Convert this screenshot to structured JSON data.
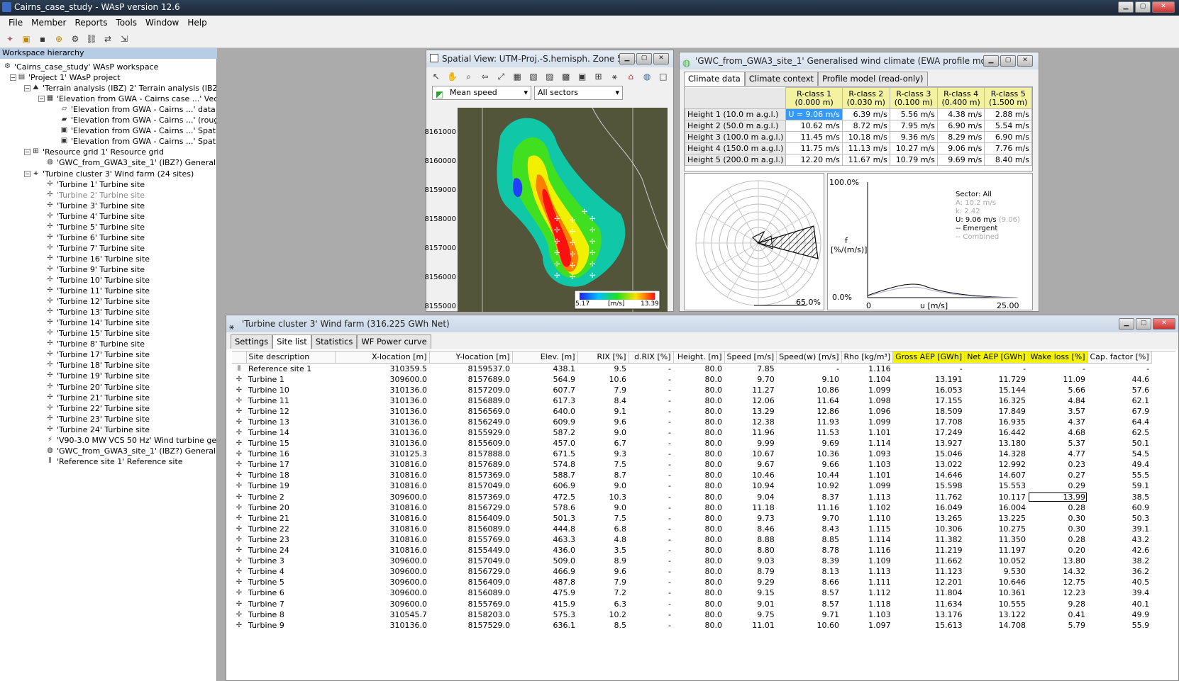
{
  "app": {
    "title": "Cairns_case_study - WAsP version 12.6",
    "menu": [
      "File",
      "Member",
      "Reports",
      "Tools",
      "Window",
      "Help"
    ]
  },
  "workspace": {
    "header": "Workspace hierarchy",
    "tree": [
      {
        "label": "'Cairns_case_study' WAsP workspace",
        "level": 0,
        "icon": "workspace-icon"
      },
      {
        "label": "'Project 1' WAsP project",
        "level": 1,
        "icon": "project-icon"
      },
      {
        "label": "'Terrain analysis (IBZ) 2' Terrain analysis (IBZ)",
        "level": 2,
        "icon": "terrain-icon"
      },
      {
        "label": "'Elevation from GWA - Cairns case ...' Vector map",
        "level": 3,
        "icon": "map-icon"
      },
      {
        "label": "'Elevation from GWA - Cairns ...' data layer",
        "level": 4,
        "icon": "layer-icon"
      },
      {
        "label": "'Elevation from GWA - Cairns ...' (roughness)",
        "level": 4,
        "icon": "roughness-icon"
      },
      {
        "label": "'Elevation from GWA - Cairns ...' Spatial image",
        "level": 4,
        "icon": "image-icon"
      },
      {
        "label": "'Elevation from GWA - Cairns ...' Spatial image",
        "level": 4,
        "icon": "image-icon"
      },
      {
        "label": "'Resource grid 1' Resource grid",
        "level": 2,
        "icon": "grid-icon"
      },
      {
        "label": "'GWC_from_GWA3_site_1' (IBZ?) Generalised wind",
        "level": 3,
        "icon": "climate-icon"
      },
      {
        "label": "'Turbine cluster 3' Wind farm (24 sites)",
        "level": 2,
        "icon": "windfarm-icon"
      },
      {
        "label": "'Turbine 1' Turbine site",
        "level": 3,
        "icon": "turbine-icon"
      },
      {
        "label": "'Turbine 2' Turbine site",
        "level": 3,
        "icon": "turbine-icon",
        "selected": true
      },
      {
        "label": "'Turbine 3' Turbine site",
        "level": 3,
        "icon": "turbine-icon"
      },
      {
        "label": "'Turbine 4' Turbine site",
        "level": 3,
        "icon": "turbine-icon"
      },
      {
        "label": "'Turbine 5' Turbine site",
        "level": 3,
        "icon": "turbine-icon"
      },
      {
        "label": "'Turbine 6' Turbine site",
        "level": 3,
        "icon": "turbine-icon"
      },
      {
        "label": "'Turbine 7' Turbine site",
        "level": 3,
        "icon": "turbine-icon"
      },
      {
        "label": "'Turbine 16' Turbine site",
        "level": 3,
        "icon": "turbine-icon"
      },
      {
        "label": "'Turbine 9' Turbine site",
        "level": 3,
        "icon": "turbine-icon"
      },
      {
        "label": "'Turbine 10' Turbine site",
        "level": 3,
        "icon": "turbine-icon"
      },
      {
        "label": "'Turbine 11' Turbine site",
        "level": 3,
        "icon": "turbine-icon"
      },
      {
        "label": "'Turbine 12' Turbine site",
        "level": 3,
        "icon": "turbine-icon"
      },
      {
        "label": "'Turbine 13' Turbine site",
        "level": 3,
        "icon": "turbine-icon"
      },
      {
        "label": "'Turbine 14' Turbine site",
        "level": 3,
        "icon": "turbine-icon"
      },
      {
        "label": "'Turbine 15' Turbine site",
        "level": 3,
        "icon": "turbine-icon"
      },
      {
        "label": "'Turbine 8' Turbine site",
        "level": 3,
        "icon": "turbine-icon"
      },
      {
        "label": "'Turbine 17' Turbine site",
        "level": 3,
        "icon": "turbine-icon"
      },
      {
        "label": "'Turbine 18' Turbine site",
        "level": 3,
        "icon": "turbine-icon"
      },
      {
        "label": "'Turbine 19' Turbine site",
        "level": 3,
        "icon": "turbine-icon"
      },
      {
        "label": "'Turbine 20' Turbine site",
        "level": 3,
        "icon": "turbine-icon"
      },
      {
        "label": "'Turbine 21' Turbine site",
        "level": 3,
        "icon": "turbine-icon"
      },
      {
        "label": "'Turbine 22' Turbine site",
        "level": 3,
        "icon": "turbine-icon"
      },
      {
        "label": "'Turbine 23' Turbine site",
        "level": 3,
        "icon": "turbine-icon"
      },
      {
        "label": "'Turbine 24' Turbine site",
        "level": 3,
        "icon": "turbine-icon"
      },
      {
        "label": "'V90-3.0 MW VCS 50 Hz' Wind turbine generator",
        "level": 3,
        "icon": "generator-icon"
      },
      {
        "label": "'GWC_from_GWA3_site_1' (IBZ?) Generalised wind",
        "level": 3,
        "icon": "climate-icon"
      },
      {
        "label": "'Reference site 1' Reference site",
        "level": 3,
        "icon": "reference-site-icon"
      }
    ]
  },
  "spatial": {
    "title": "Spatial View: UTM-Proj.-S.hemisph. Zone 55...",
    "layer_select": "Mean speed",
    "sector_select": "All sectors",
    "y_ticks": [
      "8161000",
      "8160000",
      "8159000",
      "8158000",
      "8157000",
      "8156000",
      "8155000"
    ],
    "legend_min": "5.17",
    "legend_unit": "[m/s]",
    "legend_max": "13.39"
  },
  "gwc": {
    "title": "'GWC_from_GWA3_site_1' Generalised wind climate (EWA profile model)",
    "tabs": [
      "Climate data",
      "Climate context",
      "Profile model (read-only)"
    ],
    "columns": [
      {
        "name": "R-class 1",
        "sub": "(0.000 m)"
      },
      {
        "name": "R-class 2",
        "sub": "(0.030 m)"
      },
      {
        "name": "R-class 3",
        "sub": "(0.100 m)"
      },
      {
        "name": "R-class 4",
        "sub": "(0.400 m)"
      },
      {
        "name": "R-class 5",
        "sub": "(1.500 m)"
      }
    ],
    "rows": [
      {
        "label": "Height 1  (10.0 m a.g.l.)",
        "values": [
          "U = 9.06 m/s",
          "6.39 m/s",
          "5.56 m/s",
          "4.38 m/s",
          "2.88 m/s"
        ]
      },
      {
        "label": "Height 2  (50.0 m a.g.l.)",
        "values": [
          "10.62 m/s",
          "8.72 m/s",
          "7.95 m/s",
          "6.90 m/s",
          "5.54 m/s"
        ]
      },
      {
        "label": "Height 3  (100.0 m a.g.l.)",
        "values": [
          "11.45 m/s",
          "10.18 m/s",
          "9.36 m/s",
          "8.29 m/s",
          "6.90 m/s"
        ]
      },
      {
        "label": "Height 4  (150.0 m a.g.l.)",
        "values": [
          "11.75 m/s",
          "11.13 m/s",
          "10.27 m/s",
          "9.06 m/s",
          "7.76 m/s"
        ]
      },
      {
        "label": "Height 5  (200.0 m a.g.l.)",
        "values": [
          "12.20 m/s",
          "11.67 m/s",
          "10.79 m/s",
          "9.69 m/s",
          "8.40 m/s"
        ]
      }
    ],
    "rose_label": "65.0%",
    "hist": {
      "y_top": "100.0%",
      "y_bottom": "0.0%",
      "ylabel_1": "f",
      "ylabel_2": "[%/(m/s)]",
      "x_left": "0",
      "xlabel": "u [m/s]",
      "x_right": "25.00",
      "sector": "Sector: All",
      "a": "A: 10.2 m/s",
      "k": "k: 2.42",
      "u": "U: 9.06 m/s",
      "u_grey": "(9.06)",
      "emergent": "-- Emergent",
      "combined": "-- Combined"
    }
  },
  "farm": {
    "title": "'Turbine cluster 3' Wind farm (316.225 GWh Net)",
    "tabs": [
      "Settings",
      "Site list",
      "Statistics",
      "WF Power curve"
    ],
    "columns": [
      "Site description",
      "X-location [m]",
      "Y-location [m]",
      "Elev. [m]",
      "RIX [%]",
      "d.RIX [%]",
      "Height. [m]",
      "Speed [m/s]",
      "Speed(w) [m/s]",
      "Rho [kg/m³]",
      "Gross AEP [GWh]",
      "Net AEP [GWh]",
      "Wake loss [%]",
      "Cap. factor [%]"
    ],
    "highlight_cols": [
      10,
      11,
      12
    ],
    "rows": [
      [
        "Reference site 1",
        "310359.5",
        "8159537.0",
        "438.1",
        "9.5",
        "-",
        "80.0",
        "7.85",
        "-",
        "1.116",
        "-",
        "-",
        "-",
        "-"
      ],
      [
        "Turbine 1",
        "309600.0",
        "8157689.0",
        "564.9",
        "10.6",
        "-",
        "80.0",
        "9.70",
        "9.10",
        "1.104",
        "13.191",
        "11.729",
        "11.09",
        "44.6"
      ],
      [
        "Turbine 10",
        "310136.0",
        "8157209.0",
        "607.7",
        "7.9",
        "-",
        "80.0",
        "11.27",
        "10.86",
        "1.099",
        "16.053",
        "15.144",
        "5.66",
        "57.6"
      ],
      [
        "Turbine 11",
        "310136.0",
        "8156889.0",
        "617.3",
        "8.4",
        "-",
        "80.0",
        "12.06",
        "11.64",
        "1.098",
        "17.155",
        "16.325",
        "4.84",
        "62.1"
      ],
      [
        "Turbine 12",
        "310136.0",
        "8156569.0",
        "640.0",
        "9.1",
        "-",
        "80.0",
        "13.29",
        "12.86",
        "1.096",
        "18.509",
        "17.849",
        "3.57",
        "67.9"
      ],
      [
        "Turbine 13",
        "310136.0",
        "8156249.0",
        "609.9",
        "9.6",
        "-",
        "80.0",
        "12.38",
        "11.93",
        "1.099",
        "17.708",
        "16.935",
        "4.37",
        "64.4"
      ],
      [
        "Turbine 14",
        "310136.0",
        "8155929.0",
        "587.2",
        "9.0",
        "-",
        "80.0",
        "11.96",
        "11.53",
        "1.101",
        "17.249",
        "16.442",
        "4.68",
        "62.5"
      ],
      [
        "Turbine 15",
        "310136.0",
        "8155609.0",
        "457.0",
        "6.7",
        "-",
        "80.0",
        "9.99",
        "9.69",
        "1.114",
        "13.927",
        "13.180",
        "5.37",
        "50.1"
      ],
      [
        "Turbine 16",
        "310125.3",
        "8157888.0",
        "671.5",
        "9.3",
        "-",
        "80.0",
        "10.67",
        "10.36",
        "1.093",
        "15.046",
        "14.328",
        "4.77",
        "54.5"
      ],
      [
        "Turbine 17",
        "310816.0",
        "8157689.0",
        "574.8",
        "7.5",
        "-",
        "80.0",
        "9.67",
        "9.66",
        "1.103",
        "13.022",
        "12.992",
        "0.23",
        "49.4"
      ],
      [
        "Turbine 18",
        "310816.0",
        "8157369.0",
        "588.7",
        "8.7",
        "-",
        "80.0",
        "10.46",
        "10.44",
        "1.101",
        "14.646",
        "14.607",
        "0.27",
        "55.5"
      ],
      [
        "Turbine 19",
        "310816.0",
        "8157049.0",
        "606.9",
        "9.0",
        "-",
        "80.0",
        "10.94",
        "10.92",
        "1.099",
        "15.598",
        "15.553",
        "0.29",
        "59.1"
      ],
      [
        "Turbine 2",
        "309600.0",
        "8157369.0",
        "472.5",
        "10.3",
        "-",
        "80.0",
        "9.04",
        "8.37",
        "1.113",
        "11.762",
        "10.117",
        "13.99",
        "38.5"
      ],
      [
        "Turbine 20",
        "310816.0",
        "8156729.0",
        "578.6",
        "9.0",
        "-",
        "80.0",
        "11.18",
        "11.16",
        "1.102",
        "16.049",
        "16.004",
        "0.28",
        "60.9"
      ],
      [
        "Turbine 21",
        "310816.0",
        "8156409.0",
        "501.3",
        "7.5",
        "-",
        "80.0",
        "9.73",
        "9.70",
        "1.110",
        "13.265",
        "13.225",
        "0.30",
        "50.3"
      ],
      [
        "Turbine 22",
        "310816.0",
        "8156089.0",
        "444.8",
        "6.8",
        "-",
        "80.0",
        "8.46",
        "8.43",
        "1.115",
        "10.306",
        "10.275",
        "0.30",
        "39.1"
      ],
      [
        "Turbine 23",
        "310816.0",
        "8155769.0",
        "463.3",
        "4.8",
        "-",
        "80.0",
        "8.88",
        "8.85",
        "1.114",
        "11.382",
        "11.350",
        "0.28",
        "43.2"
      ],
      [
        "Turbine 24",
        "310816.0",
        "8155449.0",
        "436.0",
        "3.5",
        "-",
        "80.0",
        "8.80",
        "8.78",
        "1.116",
        "11.219",
        "11.197",
        "0.20",
        "42.6"
      ],
      [
        "Turbine 3",
        "309600.0",
        "8157049.0",
        "509.0",
        "8.9",
        "-",
        "80.0",
        "9.03",
        "8.39",
        "1.109",
        "11.662",
        "10.052",
        "13.80",
        "38.2"
      ],
      [
        "Turbine 4",
        "309600.0",
        "8156729.0",
        "466.9",
        "9.6",
        "-",
        "80.0",
        "8.79",
        "8.13",
        "1.113",
        "11.123",
        "9.530",
        "14.32",
        "36.2"
      ],
      [
        "Turbine 5",
        "309600.0",
        "8156409.0",
        "487.8",
        "7.9",
        "-",
        "80.0",
        "9.29",
        "8.66",
        "1.111",
        "12.201",
        "10.646",
        "12.75",
        "40.5"
      ],
      [
        "Turbine 6",
        "309600.0",
        "8156089.0",
        "475.9",
        "7.2",
        "-",
        "80.0",
        "9.15",
        "8.57",
        "1.112",
        "11.804",
        "10.361",
        "12.23",
        "39.4"
      ],
      [
        "Turbine 7",
        "309600.0",
        "8155769.0",
        "415.9",
        "6.3",
        "-",
        "80.0",
        "9.01",
        "8.57",
        "1.118",
        "11.634",
        "10.555",
        "9.28",
        "40.1"
      ],
      [
        "Turbine 8",
        "310545.7",
        "8158203.0",
        "575.3",
        "10.2",
        "-",
        "80.0",
        "9.75",
        "9.71",
        "1.103",
        "13.176",
        "13.122",
        "0.41",
        "49.9"
      ],
      [
        "Turbine 9",
        "310136.0",
        "8157529.0",
        "636.1",
        "8.5",
        "-",
        "80.0",
        "11.01",
        "10.60",
        "1.097",
        "15.613",
        "14.708",
        "5.79",
        "55.9"
      ]
    ]
  }
}
